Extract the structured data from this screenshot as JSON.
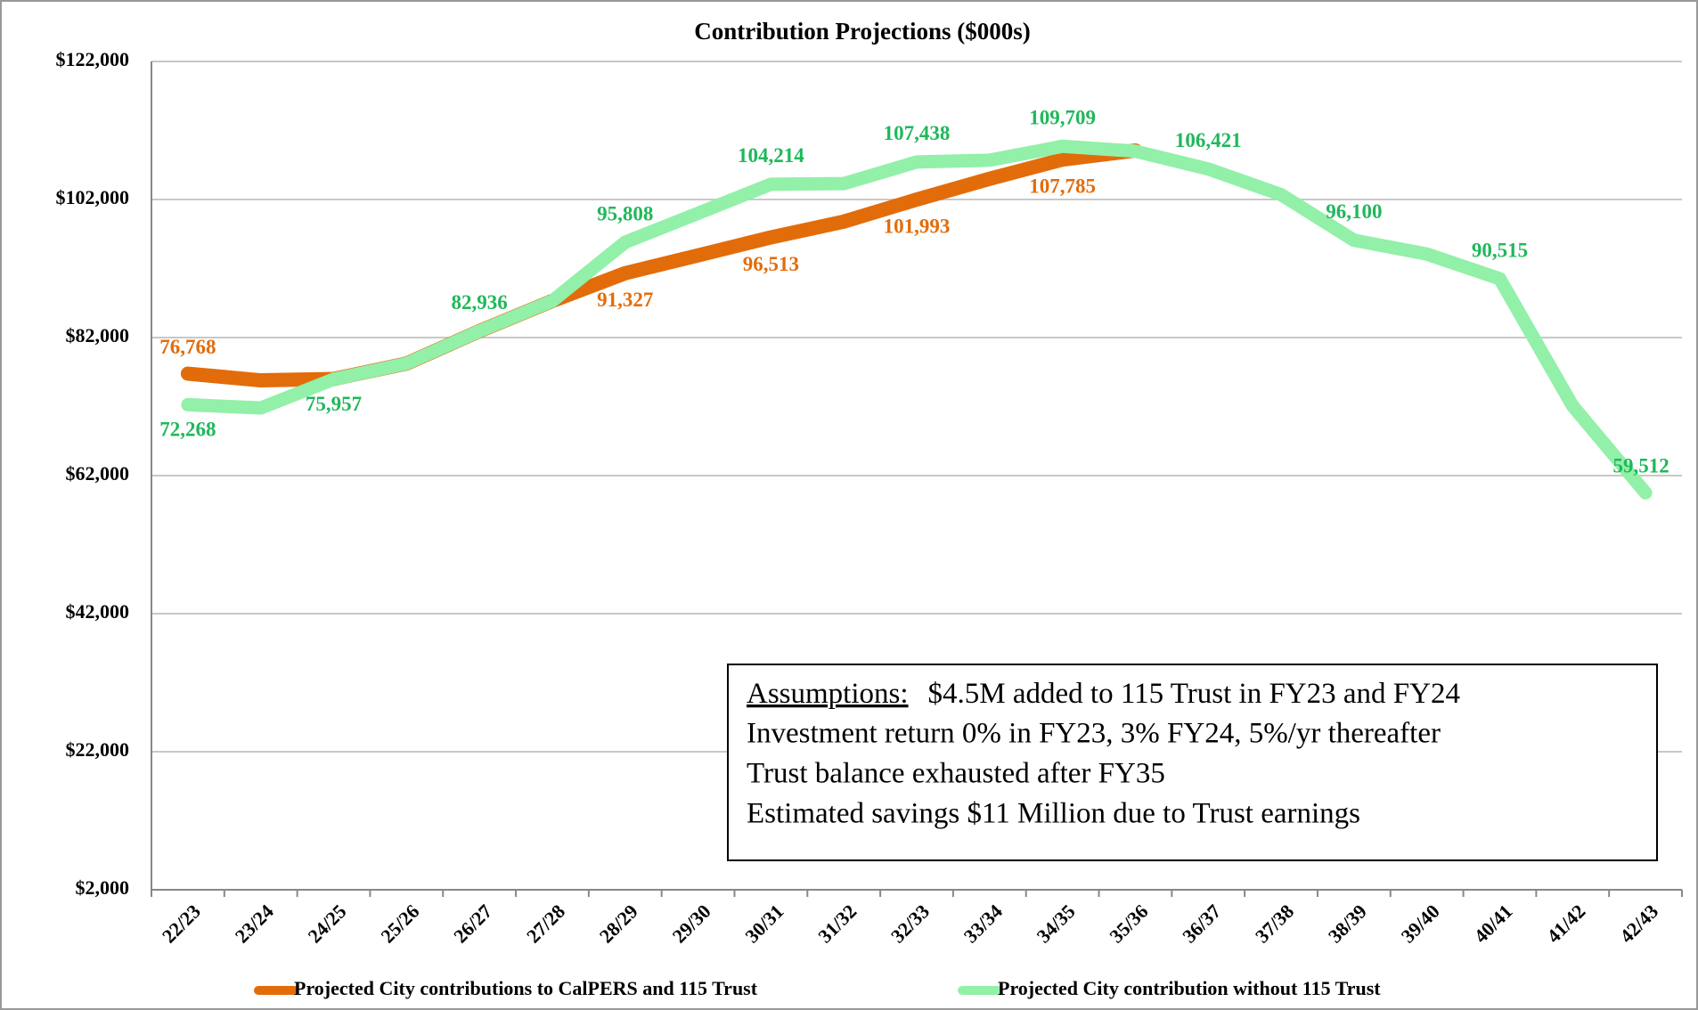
{
  "chart_data": {
    "type": "line",
    "title": "Contribution Projections ($000s)",
    "categories": [
      "22/23",
      "23/24",
      "24/25",
      "25/26",
      "26/27",
      "27/28",
      "28/29",
      "29/30",
      "30/31",
      "31/32",
      "32/33",
      "33/34",
      "34/35",
      "35/36",
      "36/37",
      "37/38",
      "38/39",
      "39/40",
      "40/41",
      "41/42",
      "42/43"
    ],
    "series": [
      {
        "name": "Projected City contributions to CalPERS and 115 Trust",
        "color": "#e36c0a",
        "values": [
          76768,
          75800,
          76000,
          78235,
          82936,
          87300,
          91327,
          93900,
          96513,
          98800,
          101993,
          105000,
          107785,
          109100,
          null,
          null,
          null,
          null,
          null,
          null,
          null
        ],
        "value_labels": [
          "76,768",
          null,
          null,
          null,
          null,
          null,
          "91,327",
          null,
          "96,513",
          null,
          "101,993",
          null,
          "107,785",
          null,
          null,
          null,
          null,
          null,
          null,
          null,
          null
        ]
      },
      {
        "name": "Projected City contribution without 115 Trust",
        "color": "#92f0a8",
        "values": [
          72268,
          71800,
          75957,
          78235,
          82936,
          87300,
          95808,
          100000,
          104214,
          104300,
          107438,
          107700,
          109709,
          109000,
          106421,
          102700,
          96100,
          94100,
          90515,
          72100,
          59512
        ],
        "value_labels": [
          "72,268",
          null,
          "75,957",
          null,
          "82,936",
          null,
          "95,808",
          null,
          "104,214",
          null,
          "107,438",
          null,
          "109,709",
          null,
          "106,421",
          null,
          "96,100",
          null,
          "90,515",
          null,
          "59,512"
        ]
      }
    ],
    "ylim": [
      2000,
      122000
    ],
    "yticks": [
      {
        "value": 2000,
        "label": "$2,000"
      },
      {
        "value": 22000,
        "label": "$22,000"
      },
      {
        "value": 42000,
        "label": "$42,000"
      },
      {
        "value": 62000,
        "label": "$62,000"
      },
      {
        "value": 82000,
        "label": "$82,000"
      },
      {
        "value": 102000,
        "label": "$102,000"
      },
      {
        "value": 122000,
        "label": "$122,000"
      }
    ],
    "grid": true,
    "legend": "bottom",
    "annotation": {
      "heading": "Assumptions:",
      "lines": [
        "$4.5M added to 115 Trust in FY23 and FY24",
        "Investment return 0% in FY23, 3% FY24, 5%/yr thereafter",
        "Trust balance exhausted after FY35",
        "Estimated savings $11 Million due to Trust earnings"
      ]
    }
  }
}
